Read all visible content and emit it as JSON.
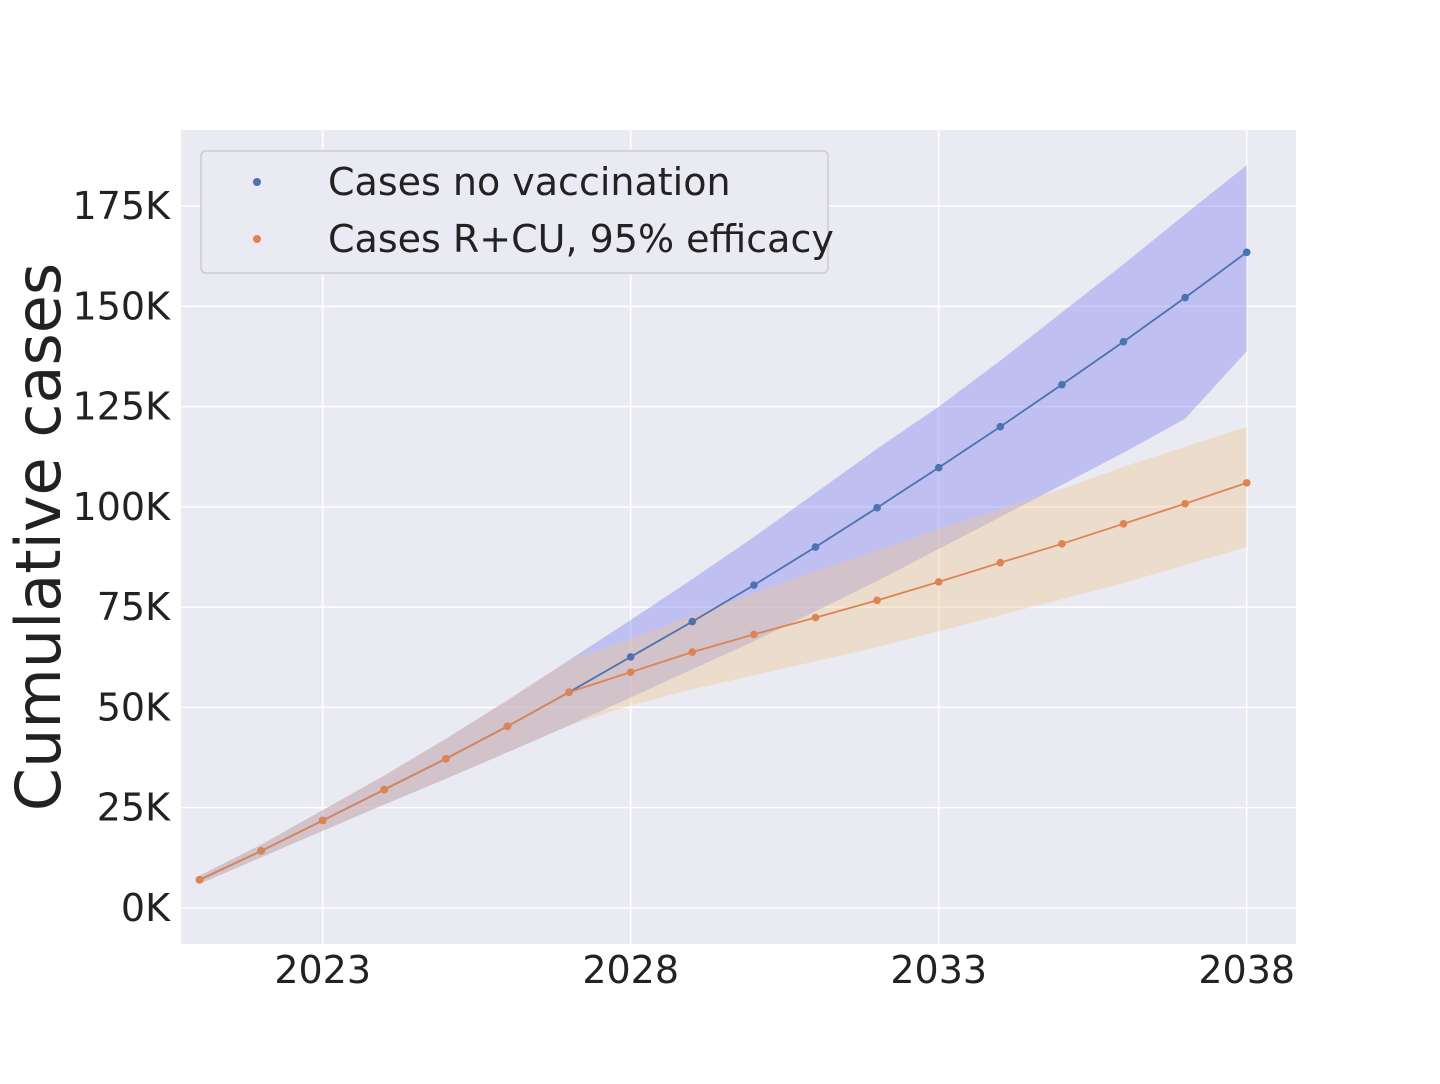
{
  "chart_data": {
    "type": "line",
    "title": "",
    "xlabel": "",
    "ylabel": "Cumulative cases",
    "xlim": [
      2020.7,
      2038.8
    ],
    "ylim": [
      -9000,
      194000
    ],
    "x_ticks": [
      2023,
      2028,
      2033,
      2038
    ],
    "x_tick_labels": [
      "2023",
      "2028",
      "2033",
      "2038"
    ],
    "y_ticks": [
      0,
      25000,
      50000,
      75000,
      100000,
      125000,
      150000,
      175000
    ],
    "y_tick_labels": [
      "0K",
      "25K",
      "50K",
      "75K",
      "100K",
      "125K",
      "150K",
      "175K"
    ],
    "grid": true,
    "legend_position": "top-left",
    "x": [
      2021,
      2022,
      2023,
      2024,
      2025,
      2026,
      2027,
      2028,
      2029,
      2030,
      2031,
      2032,
      2033,
      2034,
      2035,
      2036,
      2037,
      2038
    ],
    "series": [
      {
        "name": "Cases no vaccination",
        "color": "#4c72b0",
        "band_color": "#8c8cf0",
        "values": [
          7000,
          14200,
          21800,
          29500,
          37200,
          45300,
          53800,
          62600,
          71400,
          80500,
          90000,
          99800,
          109800,
          120000,
          130500,
          141200,
          152200,
          163500
        ],
        "lower": [
          6000,
          12600,
          19200,
          25800,
          32200,
          38800,
          45500,
          52500,
          59500,
          66500,
          74000,
          81500,
          89500,
          97500,
          105500,
          113500,
          122000,
          138800
        ],
        "upper": [
          8000,
          15800,
          24400,
          33000,
          42200,
          51800,
          61800,
          71800,
          82000,
          92500,
          103500,
          114500,
          125000,
          136500,
          148500,
          160500,
          173000,
          185200
        ]
      },
      {
        "name": "Cases R+CU, 95% efficacy",
        "color": "#dd8452",
        "band_color": "#f0c890",
        "values": [
          7000,
          14200,
          21800,
          29500,
          37200,
          45300,
          53800,
          58800,
          63800,
          68200,
          72400,
          76700,
          81300,
          86100,
          90800,
          95800,
          100800,
          106000
        ],
        "lower": [
          6000,
          12600,
          19200,
          25800,
          32200,
          38800,
          45500,
          50500,
          54500,
          58000,
          61500,
          65000,
          69000,
          73000,
          77000,
          81000,
          85500,
          90000
        ],
        "upper": [
          8000,
          15800,
          24400,
          33000,
          42200,
          51800,
          61800,
          67000,
          73000,
          78500,
          84000,
          89000,
          94500,
          99500,
          104500,
          110000,
          115000,
          120000
        ]
      }
    ]
  }
}
